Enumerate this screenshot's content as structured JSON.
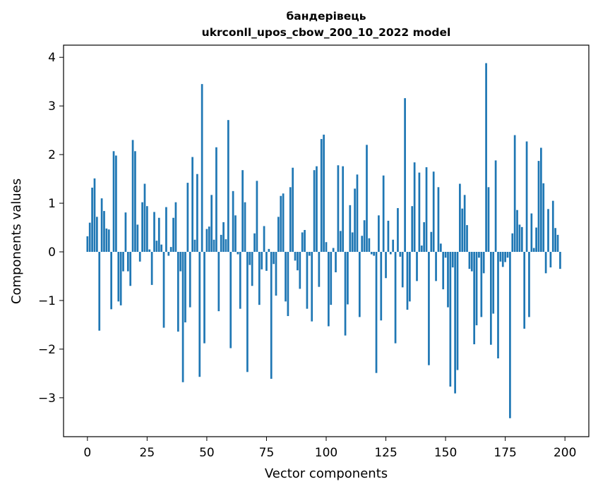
{
  "chart_data": {
    "type": "bar",
    "title": "бандерівець",
    "subtitle": "ukrconll_upos_cbow_200_10_2022 model",
    "xlabel": "Vector components",
    "ylabel": "Components values",
    "xlim": [
      -10,
      210
    ],
    "ylim": [
      -3.8,
      4.25
    ],
    "xticks": [
      0,
      25,
      50,
      75,
      100,
      125,
      150,
      175,
      200
    ],
    "yticks": [
      -3,
      -2,
      -1,
      0,
      1,
      2,
      3,
      4
    ],
    "ytick_labels": [
      "−3",
      "−2",
      "−1",
      "0",
      "1",
      "2",
      "3",
      "4"
    ],
    "grid": false,
    "bar_color": "#1f77b4",
    "values": [
      0.32,
      0.6,
      1.32,
      1.51,
      0.72,
      -1.62,
      1.1,
      0.84,
      0.48,
      0.46,
      -1.18,
      2.07,
      1.98,
      -1.02,
      -1.1,
      -0.4,
      0.81,
      -0.4,
      -0.7,
      2.3,
      2.07,
      0.56,
      -0.2,
      1.02,
      1.4,
      0.94,
      0.05,
      -0.68,
      0.82,
      0.23,
      0.7,
      0.15,
      -1.56,
      0.92,
      -0.08,
      0.1,
      0.7,
      1.02,
      -1.64,
      -0.4,
      -2.68,
      -1.45,
      1.42,
      -1.14,
      1.95,
      0.25,
      1.6,
      -2.57,
      3.45,
      -1.88,
      0.47,
      0.52,
      1.17,
      0.25,
      2.15,
      -1.22,
      0.35,
      0.61,
      0.26,
      2.71,
      -1.98,
      1.25,
      0.75,
      -0.05,
      -1.17,
      1.68,
      1.02,
      -2.47,
      -0.27,
      -0.7,
      0.38,
      1.46,
      -1.09,
      -0.36,
      0.53,
      -0.39,
      0.06,
      -2.61,
      -0.25,
      -0.9,
      0.72,
      1.15,
      1.2,
      -1.02,
      -1.32,
      1.33,
      1.73,
      -0.18,
      -0.38,
      -0.76,
      0.4,
      0.45,
      -1.17,
      -0.08,
      -1.43,
      1.68,
      1.76,
      -0.72,
      2.32,
      2.41,
      0.2,
      -1.53,
      -1.09,
      0.08,
      -0.42,
      1.78,
      0.43,
      1.76,
      -1.72,
      -1.08,
      0.96,
      0.4,
      1.3,
      1.59,
      -1.34,
      0.33,
      0.65,
      2.2,
      0.28,
      -0.05,
      -0.08,
      -2.49,
      0.75,
      -1.41,
      1.57,
      -0.54,
      0.64,
      -0.05,
      0.25,
      -1.88,
      0.9,
      -0.1,
      -0.73,
      3.16,
      -1.19,
      -1.02,
      0.94,
      1.84,
      -0.6,
      1.63,
      0.13,
      0.61,
      1.74,
      -2.33,
      0.41,
      1.65,
      -0.6,
      1.33,
      0.17,
      -0.77,
      -0.12,
      -1.14,
      -2.77,
      -0.32,
      -2.91,
      -2.43,
      1.4,
      0.89,
      1.17,
      0.55,
      -0.35,
      -0.4,
      -1.9,
      -1.51,
      -0.12,
      -1.34,
      -0.44,
      3.88,
      1.33,
      -1.91,
      -1.27,
      1.88,
      -2.19,
      -0.2,
      -0.31,
      -0.21,
      -0.12,
      -3.42,
      0.38,
      2.4,
      0.86,
      0.56,
      0.51,
      -1.58,
      2.27,
      -1.34,
      0.79,
      0.08,
      0.5,
      1.87,
      2.14,
      1.41,
      -0.44,
      0.88,
      -0.32,
      1.05,
      0.49,
      0.35,
      -0.35
    ]
  }
}
